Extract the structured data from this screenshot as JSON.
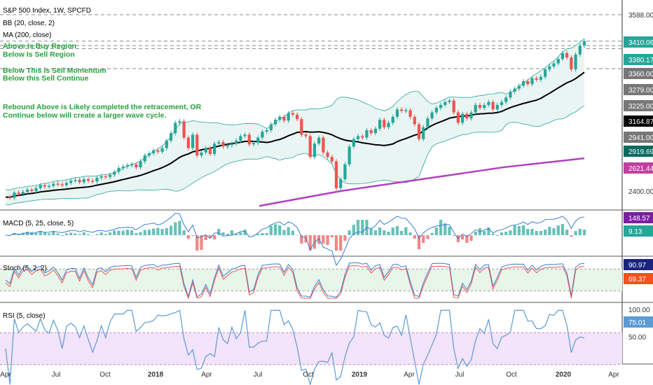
{
  "header": {
    "symbol_line": "S&P 500 Index, 1W, SPCFD",
    "bb_line": "BB (20, close, 2)",
    "ma_line": "MA (200, close)"
  },
  "annotations": [
    "Above Is Buy Region",
    "Below Is Sell Region",
    "Below This is Sell Momentum",
    "Below this Sell Continue",
    "Rebound Above is Likely completed the retracement, OR",
    "Continue below will create a larger wave cycle."
  ],
  "colors": {
    "up": "#26a69a",
    "down": "#ef5350",
    "ma200": "#b040c0",
    "ma20": "#000000",
    "band_fill": "#e9f5f3",
    "annotation": "#26a03a",
    "rsi_line": "#5b9bd5",
    "rsi_band": "#f3e3fb",
    "stoch_band": "#e8f5e9"
  },
  "chart_data": [
    {
      "type": "line",
      "title": "S&P 500 Index, 1W, SPCFD",
      "x_ticks": [
        "Apr",
        "Jul",
        "Oct",
        "2018",
        "Apr",
        "Jul",
        "Oct",
        "2019",
        "Apr",
        "Jul",
        "Oct",
        "2020",
        "Apr"
      ],
      "price_axis_ticks": [
        3588.0,
        3410.06,
        3380.17,
        3360.0,
        3279.0,
        3225.0,
        3164.87,
        2941.0,
        2919.69,
        2621.44,
        2400.0
      ],
      "horizontal_levels": [
        3588,
        3410,
        3380,
        3360,
        3225
      ],
      "series": [
        {
          "name": "S&P 500 Index",
          "values": [
            2360,
            2355,
            2390,
            2380,
            2395,
            2410,
            2400,
            2420,
            2440,
            2430,
            2435,
            2450,
            2445,
            2440,
            2455,
            2470,
            2475,
            2460,
            2480,
            2470,
            2465,
            2490,
            2500,
            2495,
            2510,
            2530,
            2555,
            2565,
            2575,
            2580,
            2560,
            2600,
            2640,
            2655,
            2675,
            2665,
            2690,
            2740,
            2790,
            2860,
            2870,
            2760,
            2690,
            2780,
            2640,
            2660,
            2690,
            2650,
            2720,
            2730,
            2700,
            2710,
            2720,
            2740,
            2770,
            2780,
            2715,
            2725,
            2760,
            2800,
            2810,
            2850,
            2880,
            2900,
            2875,
            2925,
            2915,
            2885,
            2780,
            2770,
            2630,
            2720,
            2760,
            2660,
            2630,
            2600,
            2420,
            2480,
            2580,
            2700,
            2750,
            2770,
            2760,
            2810,
            2790,
            2820,
            2880,
            2830,
            2860,
            2900,
            2950,
            2940,
            2945,
            2900,
            2850,
            2750,
            2830,
            2890,
            2930,
            2960,
            2980,
            3000,
            3010,
            2930,
            2860,
            2920,
            2890,
            2930,
            2980,
            2960,
            2980,
            3000,
            2950,
            2980,
            3000,
            3030,
            3070,
            3090,
            3110,
            3140,
            3120,
            3160,
            3150,
            3170,
            3220,
            3240,
            3260,
            3290,
            3330,
            3300,
            3220,
            3320,
            3380,
            3410
          ]
        },
        {
          "name": "MA (200, close)",
          "values": [
            2300,
            2400,
            2480,
            2560,
            2621
          ]
        },
        {
          "name": "MACD",
          "values": [
            148.57,
            9.13
          ]
        },
        {
          "name": "Stoch",
          "values": [
            90.97,
            69.37
          ]
        },
        {
          "name": "RSI",
          "values": [
            75.01
          ]
        }
      ],
      "panels": [
        {
          "title": "MACD (5, 25, close, 5)",
          "last_values": [
            "148.57",
            "9.13"
          ]
        },
        {
          "title": "Stoch (5, 2, 2)",
          "last_values": [
            "90.97",
            "69.37"
          ],
          "levels": [
            80,
            20
          ]
        },
        {
          "title": "RSI (5, close)",
          "axis_ticks": [
            "100.00",
            "50.00"
          ],
          "last_value": "75.01",
          "levels": [
            70,
            30
          ]
        }
      ]
    }
  ]
}
